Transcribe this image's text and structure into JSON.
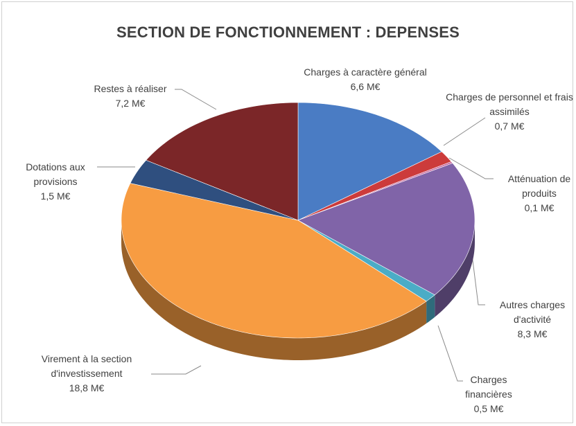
{
  "chart_data": {
    "type": "pie",
    "title": "SECTION DE FONCTIONNEMENT : DEPENSES",
    "categories": [
      "Charges à caractère général",
      "Charges de personnel et frais assimilés",
      "Atténuation de produits",
      "Autres charges d'activité",
      "Charges financières",
      "Virement à la section d'investissement",
      "Dotations aux provisions",
      "Restes à réaliser"
    ],
    "values": [
      6.6,
      0.7,
      0.1,
      8.3,
      0.5,
      18.8,
      1.5,
      7.2
    ],
    "value_labels": [
      "6,6 M€",
      "0,7 M€",
      "0,1 M€",
      "8,3 M€",
      "0,5 M€",
      "18,8 M€",
      "1,5 M€",
      "7,2 M€"
    ],
    "colors": [
      "#4a7cc4",
      "#cc3b3b",
      "#c86aa0",
      "#8064a8",
      "#4bacc6",
      "#f79c42",
      "#2f4f7f",
      "#7b2628"
    ]
  }
}
